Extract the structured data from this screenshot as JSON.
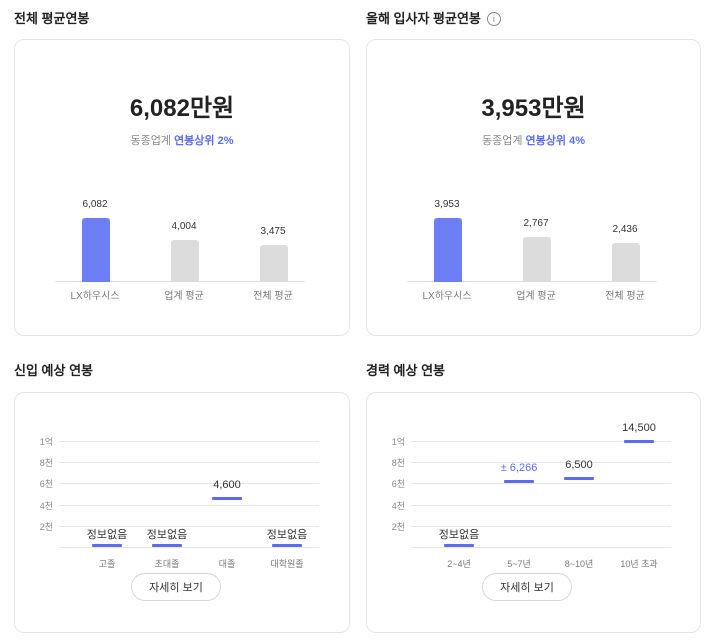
{
  "sections": {
    "overall_salary": {
      "title": "전체 평균연봉",
      "amount": "6,082만원",
      "sub_prefix": "동종업계",
      "sub_highlight": "연봉상위 2%",
      "bars": [
        {
          "value_label": "6,082",
          "label": "LX하우시스",
          "highlight": true
        },
        {
          "value_label": "4,004",
          "label": "업계 평균",
          "highlight": false
        },
        {
          "value_label": "3,475",
          "label": "전체 평균",
          "highlight": false
        }
      ]
    },
    "new_hire_salary": {
      "title": "올해 입사자 평균연봉",
      "info_icon": "i",
      "amount": "3,953만원",
      "sub_prefix": "동종업계",
      "sub_highlight": "연봉상위 4%",
      "bars": [
        {
          "value_label": "3,953",
          "label": "LX하우시스",
          "highlight": true
        },
        {
          "value_label": "2,767",
          "label": "업계 평균",
          "highlight": false
        },
        {
          "value_label": "2,436",
          "label": "전체 평균",
          "highlight": false
        }
      ]
    },
    "entry_expected": {
      "title": "신입 예상 연봉",
      "y_ticks": [
        "1억",
        "8천",
        "6천",
        "4천",
        "2천"
      ],
      "columns": [
        {
          "label": "고졸",
          "value_label": "정보없음",
          "value": null
        },
        {
          "label": "초대졸",
          "value_label": "정보없음",
          "value": null
        },
        {
          "label": "대졸",
          "value_label": "4,600",
          "value": 4600
        },
        {
          "label": "대학원졸",
          "value_label": "정보없음",
          "value": null
        }
      ],
      "button_label": "자세히 보기"
    },
    "career_expected": {
      "title": "경력 예상 연봉",
      "y_ticks": [
        "1억",
        "8천",
        "6천",
        "4천",
        "2천"
      ],
      "columns": [
        {
          "label": "2~4년",
          "value_label": "정보없음",
          "value": null
        },
        {
          "label": "5~7년",
          "value_label": "± 6,266",
          "value": 6266
        },
        {
          "label": "8~10년",
          "value_label": "6,500",
          "value": 6500
        },
        {
          "label": "10년 초과",
          "value_label": "14,500",
          "value": 14500
        }
      ],
      "button_label": "자세히 보기"
    }
  },
  "colors": {
    "accent": "#5b6cf0",
    "bar_highlight": "#6c7ff5",
    "bar_neutral": "#dcdcdc"
  }
}
